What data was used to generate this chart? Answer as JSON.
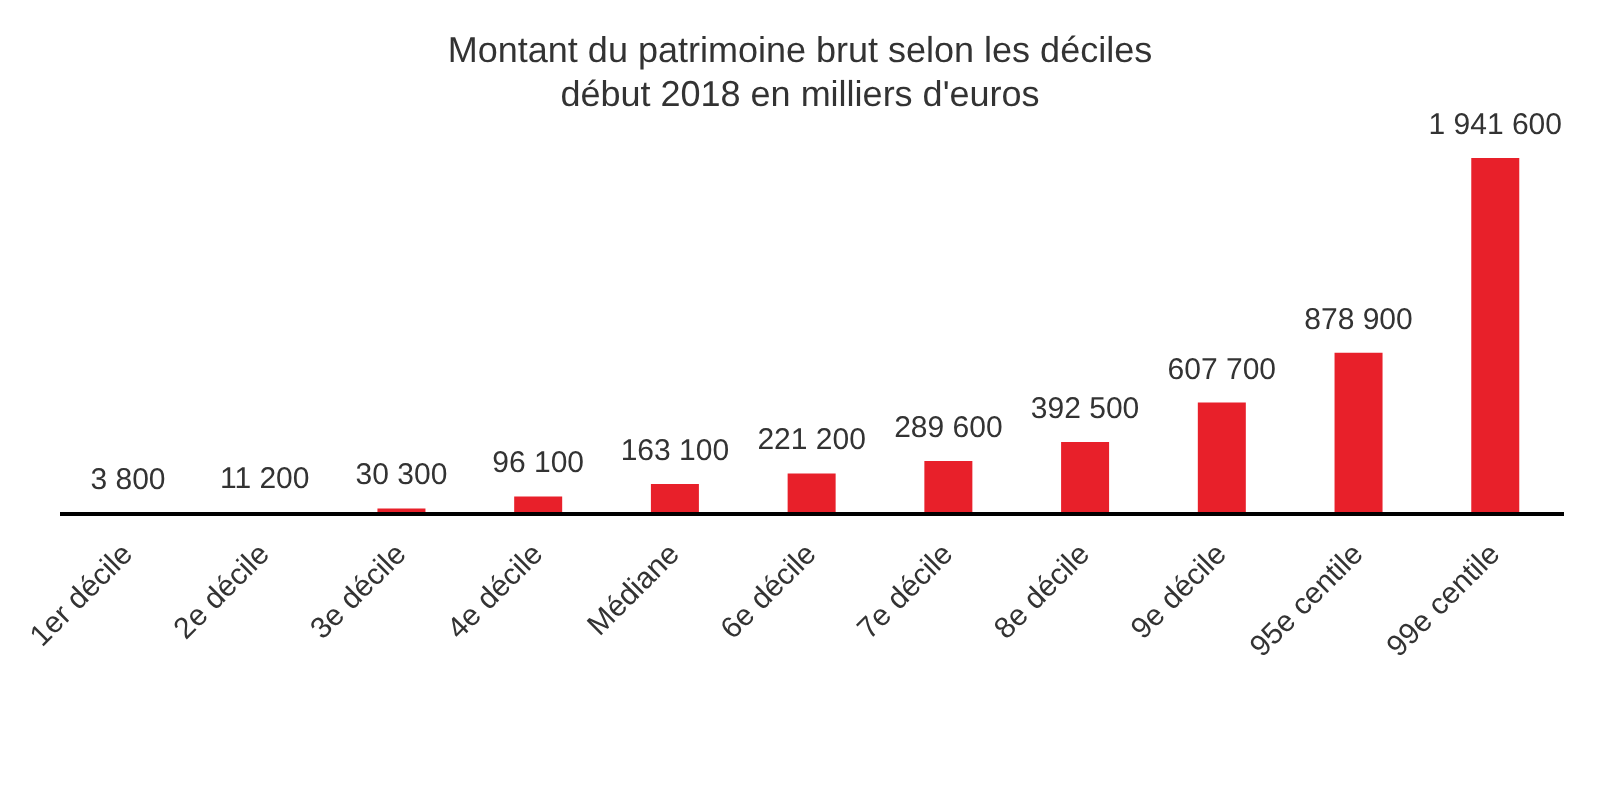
{
  "chart_data": {
    "type": "bar",
    "title": "Montant du patrimoine brut selon les déciles",
    "subtitle": "début 2018 en milliers d'euros",
    "categories": [
      "1er décile",
      "2e décile",
      "3e décile",
      "4e décile",
      "Médiane",
      "6e décile",
      "7e décile",
      "8e décile",
      "9e décile",
      "95e centile",
      "99e centile"
    ],
    "values": [
      3800,
      11200,
      30300,
      96100,
      163100,
      221200,
      289600,
      392500,
      607700,
      878900,
      1941600
    ],
    "value_labels": [
      "3 800",
      "11 200",
      "30 300",
      "96 100",
      "163 100",
      "221 200",
      "289 600",
      "392 500",
      "607 700",
      "878 900",
      "1 941 600"
    ],
    "color": "#e8202a"
  }
}
